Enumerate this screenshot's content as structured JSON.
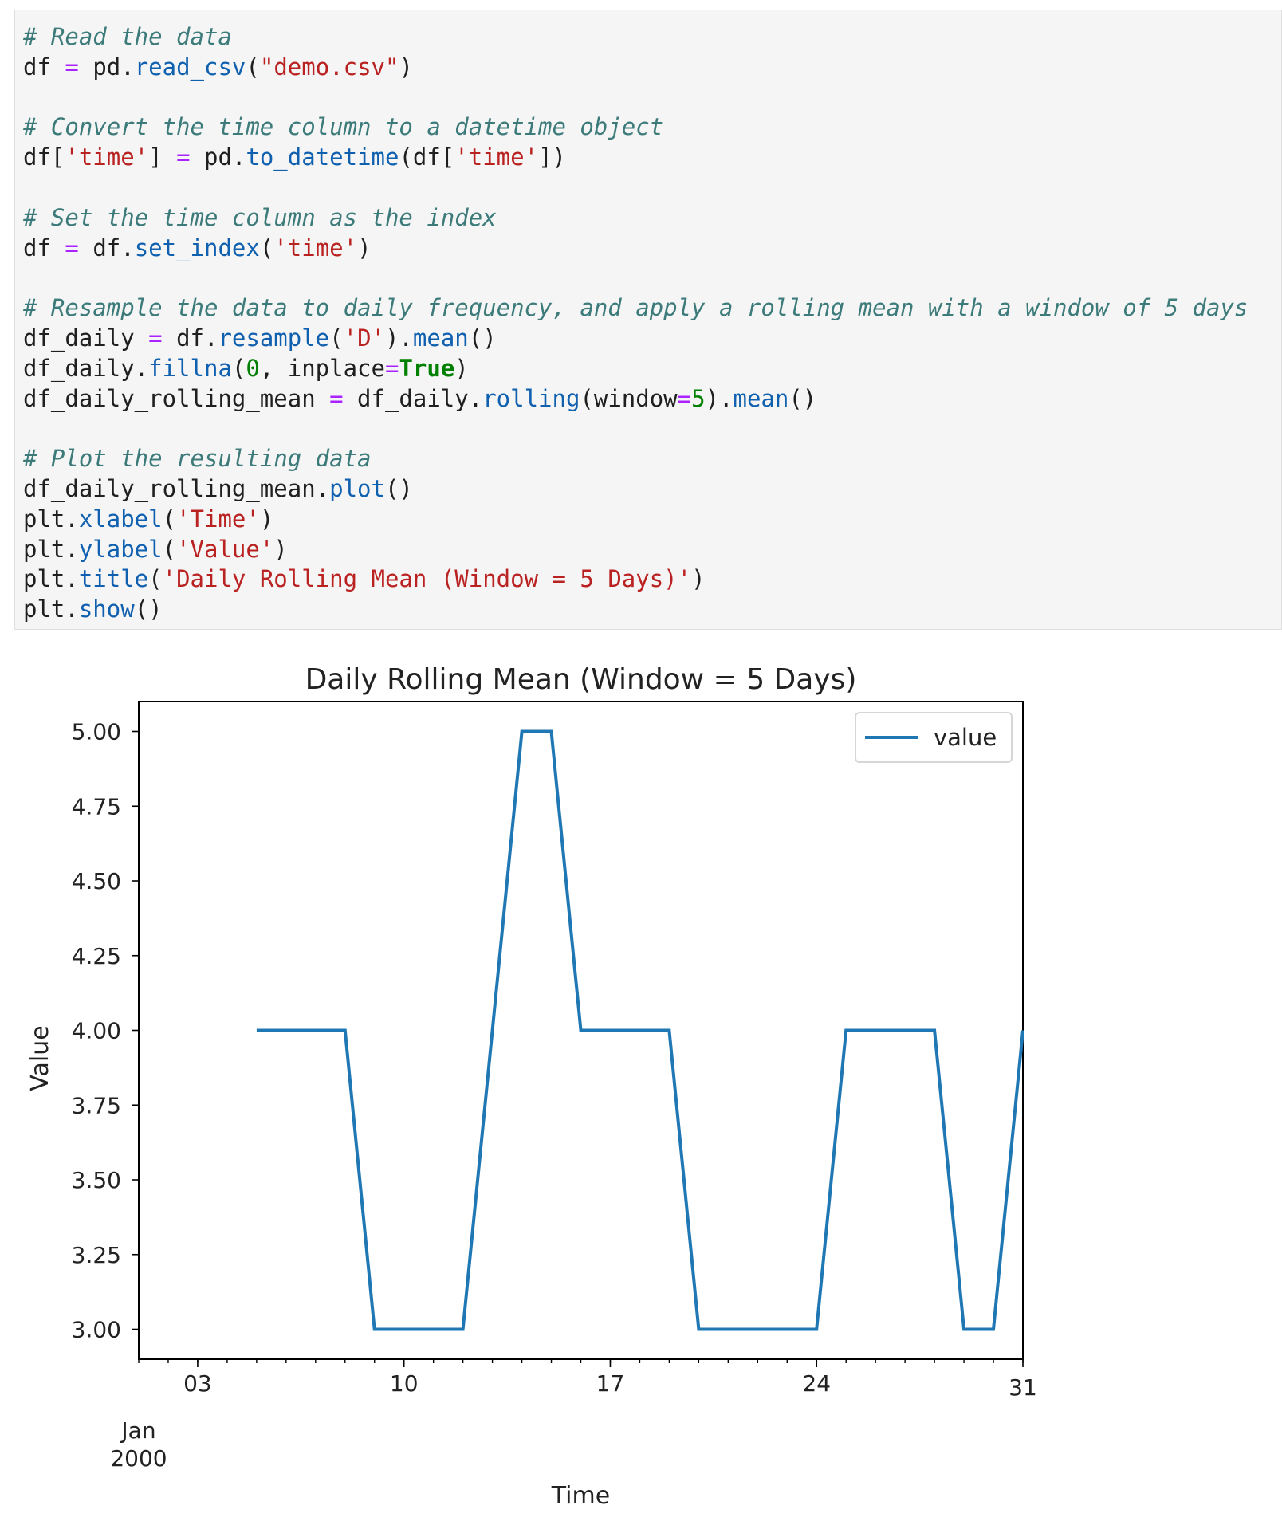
{
  "code_cell": {
    "lines": [
      [
        {
          "t": "# Read the data",
          "c": "cm"
        }
      ],
      [
        {
          "t": "df "
        },
        {
          "t": "=",
          "c": "op"
        },
        {
          "t": " pd."
        },
        {
          "t": "read_csv",
          "c": "fn"
        },
        {
          "t": "("
        },
        {
          "t": "\"demo.csv\"",
          "c": "st"
        },
        {
          "t": ")"
        }
      ],
      [],
      [
        {
          "t": "# Convert the time column to a datetime object",
          "c": "cm"
        }
      ],
      [
        {
          "t": "df["
        },
        {
          "t": "'time'",
          "c": "st"
        },
        {
          "t": "] "
        },
        {
          "t": "=",
          "c": "op"
        },
        {
          "t": " pd."
        },
        {
          "t": "to_datetime",
          "c": "fn"
        },
        {
          "t": "(df["
        },
        {
          "t": "'time'",
          "c": "st"
        },
        {
          "t": "])"
        }
      ],
      [],
      [
        {
          "t": "# Set the time column as the index",
          "c": "cm"
        }
      ],
      [
        {
          "t": "df "
        },
        {
          "t": "=",
          "c": "op"
        },
        {
          "t": " df."
        },
        {
          "t": "set_index",
          "c": "fn"
        },
        {
          "t": "("
        },
        {
          "t": "'time'",
          "c": "st"
        },
        {
          "t": ")"
        }
      ],
      [],
      [
        {
          "t": "# Resample the data to daily frequency, and apply a rolling mean with a window of 5 days",
          "c": "cm"
        }
      ],
      [
        {
          "t": "df_daily "
        },
        {
          "t": "=",
          "c": "op"
        },
        {
          "t": " df."
        },
        {
          "t": "resample",
          "c": "fn"
        },
        {
          "t": "("
        },
        {
          "t": "'D'",
          "c": "st"
        },
        {
          "t": ")."
        },
        {
          "t": "mean",
          "c": "fn"
        },
        {
          "t": "()"
        }
      ],
      [
        {
          "t": "df_daily."
        },
        {
          "t": "fillna",
          "c": "fn"
        },
        {
          "t": "("
        },
        {
          "t": "0",
          "c": "nm"
        },
        {
          "t": ", inplace"
        },
        {
          "t": "=",
          "c": "op"
        },
        {
          "t": "True",
          "c": "kw"
        },
        {
          "t": ")"
        }
      ],
      [
        {
          "t": "df_daily_rolling_mean "
        },
        {
          "t": "=",
          "c": "op"
        },
        {
          "t": " df_daily."
        },
        {
          "t": "rolling",
          "c": "fn"
        },
        {
          "t": "(window"
        },
        {
          "t": "=",
          "c": "op"
        },
        {
          "t": "5",
          "c": "nm"
        },
        {
          "t": ")."
        },
        {
          "t": "mean",
          "c": "fn"
        },
        {
          "t": "()"
        }
      ],
      [],
      [
        {
          "t": "# Plot the resulting data",
          "c": "cm"
        }
      ],
      [
        {
          "t": "df_daily_rolling_mean."
        },
        {
          "t": "plot",
          "c": "fn"
        },
        {
          "t": "()"
        }
      ],
      [
        {
          "t": "plt."
        },
        {
          "t": "xlabel",
          "c": "fn"
        },
        {
          "t": "("
        },
        {
          "t": "'Time'",
          "c": "st"
        },
        {
          "t": ")"
        }
      ],
      [
        {
          "t": "plt."
        },
        {
          "t": "ylabel",
          "c": "fn"
        },
        {
          "t": "("
        },
        {
          "t": "'Value'",
          "c": "st"
        },
        {
          "t": ")"
        }
      ],
      [
        {
          "t": "plt."
        },
        {
          "t": "title",
          "c": "fn"
        },
        {
          "t": "("
        },
        {
          "t": "'Daily Rolling Mean (Window = 5 Days)'",
          "c": "st"
        },
        {
          "t": ")"
        }
      ],
      [
        {
          "t": "plt."
        },
        {
          "t": "show",
          "c": "fn"
        },
        {
          "t": "()"
        }
      ]
    ]
  },
  "chart_data": {
    "type": "line",
    "title": "Daily Rolling Mean (Window = 5 Days)",
    "xlabel": "Time",
    "ylabel": "Value",
    "x_axis": {
      "start": "2000-01-01",
      "end": "2000-01-31",
      "major_ticks": [
        {
          "date": "2000-01-03",
          "label": "03"
        },
        {
          "date": "2000-01-10",
          "label": "10"
        },
        {
          "date": "2000-01-17",
          "label": "17"
        },
        {
          "date": "2000-01-24",
          "label": "24"
        },
        {
          "date": "2000-01-31",
          "label": "31"
        }
      ],
      "secondary_label": [
        "Jan",
        "2000"
      ]
    },
    "y_axis": {
      "ylim": [
        2.9,
        5.1
      ],
      "ticks": [
        3.0,
        3.25,
        3.5,
        3.75,
        4.0,
        4.25,
        4.5,
        4.75,
        5.0
      ],
      "tick_labels": [
        "3.00",
        "3.25",
        "3.50",
        "3.75",
        "4.00",
        "4.25",
        "4.50",
        "4.75",
        "5.00"
      ]
    },
    "grid": false,
    "legend": {
      "position": "top-right"
    },
    "series": [
      {
        "name": "value",
        "color": "#1f77b4",
        "x": [
          "2000-01-05",
          "2000-01-06",
          "2000-01-07",
          "2000-01-08",
          "2000-01-09",
          "2000-01-10",
          "2000-01-11",
          "2000-01-12",
          "2000-01-13",
          "2000-01-14",
          "2000-01-15",
          "2000-01-16",
          "2000-01-17",
          "2000-01-18",
          "2000-01-19",
          "2000-01-20",
          "2000-01-21",
          "2000-01-22",
          "2000-01-23",
          "2000-01-24",
          "2000-01-25",
          "2000-01-26",
          "2000-01-27",
          "2000-01-28",
          "2000-01-29",
          "2000-01-30",
          "2000-01-31"
        ],
        "y": [
          4,
          4,
          4,
          4,
          3,
          3,
          3,
          3,
          4,
          5,
          5,
          4,
          4,
          4,
          4,
          3,
          3,
          3,
          3,
          3,
          4,
          4,
          4,
          4,
          3,
          3,
          4
        ]
      }
    ]
  }
}
